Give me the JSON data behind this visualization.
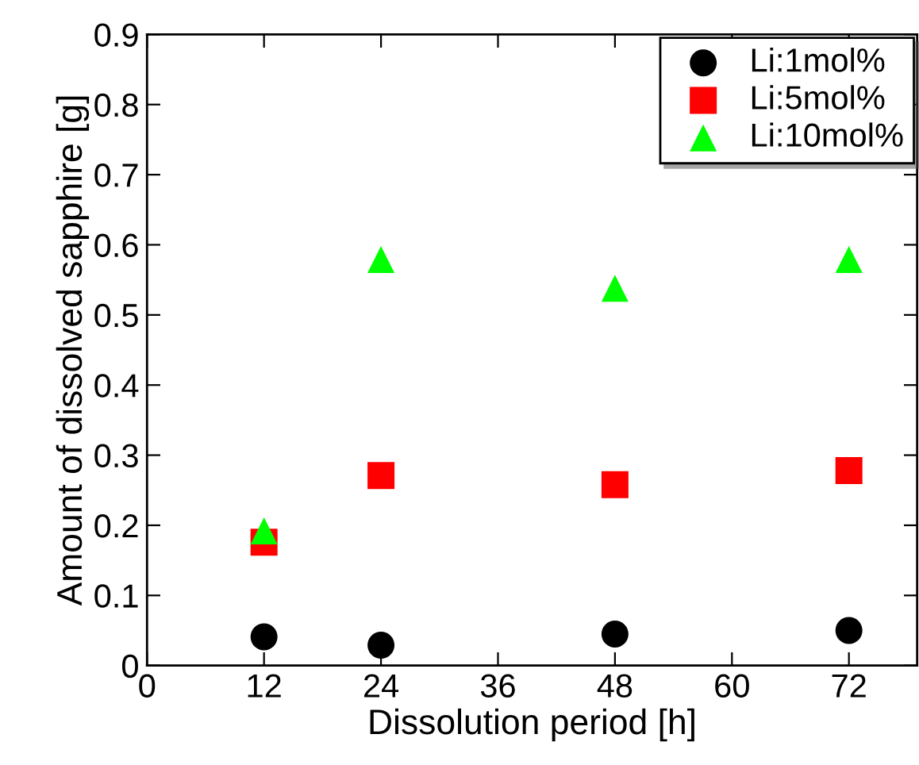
{
  "chart_data": {
    "type": "scatter",
    "xlabel": "Dissolution period [h]",
    "ylabel": "Amount of dissolved sapphire [g]",
    "x": [
      12,
      24,
      48,
      72
    ],
    "series": [
      {
        "name": "Li:1mol%",
        "color": "#000000",
        "marker": "circle",
        "values": [
          0.041,
          0.029,
          0.045,
          0.05
        ]
      },
      {
        "name": "Li:5mol%",
        "color": "#ff0000",
        "marker": "square",
        "values": [
          0.176,
          0.271,
          0.258,
          0.278
        ]
      },
      {
        "name": "Li:10mol%",
        "color": "#00ff00",
        "marker": "triangle",
        "values": [
          0.192,
          0.579,
          0.538,
          0.579
        ]
      }
    ],
    "xlim": [
      0,
      79
    ],
    "xticks": [
      0,
      12,
      24,
      36,
      48,
      60,
      72
    ],
    "ylim": [
      0,
      0.9
    ],
    "yticks": [
      {
        "value": 0,
        "label": "0"
      },
      0.1,
      0.2,
      0.3,
      0.4,
      0.5,
      0.6,
      0.7,
      0.8,
      0.9
    ],
    "grid": false,
    "legend": "top right"
  }
}
